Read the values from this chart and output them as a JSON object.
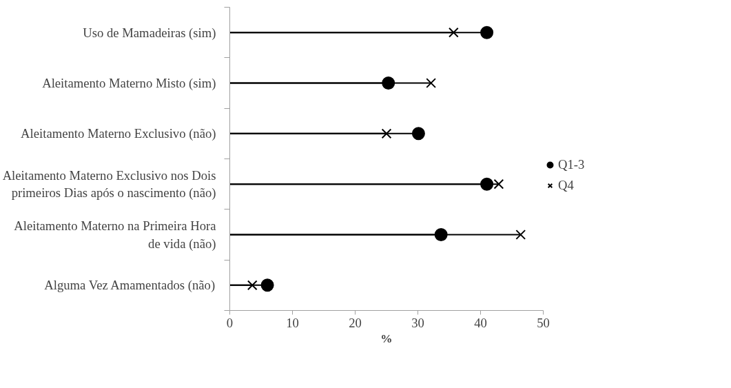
{
  "chart_data": {
    "type": "lollipop",
    "orientation": "horizontal",
    "xlabel": "%",
    "categories": [
      "Uso de Mamadeiras (sim)",
      "Aleitamento Materno Misto (sim)",
      "Aleitamento Materno Exclusivo (não)",
      "Aleitamento Materno Exclusivo nos Dois primeiros Dias após o nascimento (não)",
      "Aleitamento Materno na Primeira Hora de vida (não)",
      "Alguma Vez Amamentados (não)"
    ],
    "series": [
      {
        "name": "Q1-3",
        "color": "#000000",
        "marker": "circle",
        "values": [
          41.0,
          25.3,
          30.1,
          41.0,
          33.7,
          6.0
        ]
      },
      {
        "name": "Q4",
        "color": "#000000",
        "marker": "cross",
        "values": [
          35.7,
          32.1,
          25.0,
          42.9,
          46.4,
          3.6
        ]
      }
    ],
    "xlim": [
      0,
      50
    ],
    "xticks": [
      0,
      10,
      20,
      30,
      40,
      50
    ],
    "grid": false,
    "legend": "right"
  }
}
